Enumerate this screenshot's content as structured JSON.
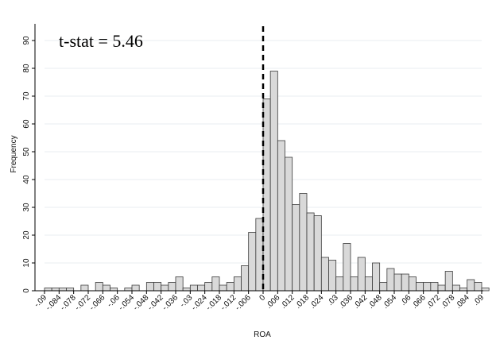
{
  "chart_data": {
    "type": "bar",
    "subtype": "histogram",
    "xlabel": "ROA",
    "ylabel": "Frequency",
    "annotation": "t-stat = 5.46",
    "bin_width": 0.003,
    "x_start": -0.09,
    "values": [
      1,
      1,
      1,
      1,
      0,
      2,
      0,
      3,
      2,
      1,
      0,
      1,
      2,
      0,
      3,
      3,
      2,
      3,
      5,
      1,
      2,
      2,
      3,
      5,
      2,
      3,
      5,
      9,
      21,
      26,
      69,
      79,
      54,
      48,
      31,
      35,
      28,
      27,
      12,
      11,
      5,
      17,
      5,
      12,
      5,
      10,
      3,
      8,
      6,
      6,
      5,
      3,
      3,
      3,
      2,
      7,
      2,
      1,
      4,
      3,
      1
    ],
    "xlim": [
      -0.09,
      0.09
    ],
    "ylim": [
      0,
      95
    ],
    "ytick_values": [
      0,
      10,
      20,
      30,
      40,
      50,
      60,
      70,
      80,
      90
    ],
    "ytick_labels": [
      "0",
      "10",
      "20",
      "30",
      "40",
      "50",
      "60",
      "70",
      "80",
      "90"
    ],
    "xtick_values": [
      -0.09,
      -0.084,
      -0.078,
      -0.072,
      -0.066,
      -0.06,
      -0.054,
      -0.048,
      -0.042,
      -0.036,
      -0.03,
      -0.024,
      -0.018,
      -0.012,
      -0.006,
      0,
      0.006,
      0.012,
      0.018,
      0.024,
      0.03,
      0.036,
      0.042,
      0.048,
      0.054,
      0.06,
      0.066,
      0.072,
      0.078,
      0.084,
      0.09
    ],
    "xtick_labels": [
      "-.09",
      "-.084",
      "-.078",
      "-.072",
      "-.066",
      "-.06",
      "-.054",
      "-.048",
      "-.042",
      "-.036",
      "-.03",
      "-.024",
      "-.018",
      "-.012",
      "-.006",
      "0",
      ".006",
      ".012",
      ".018",
      ".024",
      ".03",
      ".036",
      ".042",
      ".048",
      ".054",
      ".06",
      ".066",
      ".072",
      ".078",
      ".084",
      ".09"
    ],
    "reference_line_x": 0,
    "grid": true,
    "colors": {
      "bar_fill": "#d9d9d9",
      "bar_stroke": "#3a3a3a",
      "grid": "#e8eef0",
      "reference_line": "#000000"
    }
  }
}
